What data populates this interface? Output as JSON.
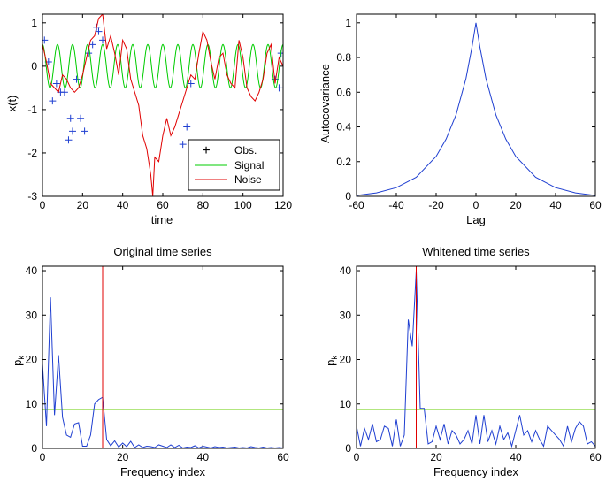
{
  "chart_data": [
    {
      "type": "line",
      "xlabel": "time",
      "ylabel": "x(t)",
      "xlim": [
        0,
        120
      ],
      "ylim": [
        -3,
        1.2
      ],
      "xticks": [
        0,
        20,
        40,
        60,
        80,
        100,
        120
      ],
      "yticks": [
        1,
        0,
        -1,
        -2,
        -3
      ],
      "legend": {
        "placement": "bottom-right",
        "entries": [
          "Obs.",
          "Signal",
          "Noise"
        ]
      },
      "series": [
        {
          "name": "Obs.",
          "marker": "+",
          "color": "#1f3fd1",
          "x": [
            1,
            3,
            5,
            7,
            9,
            11,
            13,
            14,
            15,
            17,
            19,
            21,
            23,
            25,
            27,
            28,
            30,
            70,
            72,
            74,
            116,
            118,
            119
          ],
          "y": [
            0.6,
            0.1,
            -0.8,
            -0.4,
            -0.6,
            -0.6,
            -1.7,
            -1.2,
            -1.5,
            -0.3,
            -1.2,
            -1.5,
            0.3,
            0.5,
            0.9,
            0.8,
            0.6,
            -1.8,
            -1.4,
            -0.4,
            -0.3,
            -0.5,
            0.3
          ]
        },
        {
          "name": "Signal",
          "color": "#00cc00",
          "type": "sine",
          "amplitude": 0.5,
          "period": 7.5,
          "offset": 0,
          "x_range": [
            0,
            120
          ]
        },
        {
          "name": "Noise",
          "color": "#e00000",
          "x": [
            0,
            2,
            4,
            6,
            8,
            10,
            12,
            14,
            16,
            18,
            20,
            22,
            24,
            26,
            28,
            30,
            32,
            34,
            36,
            38,
            40,
            42,
            44,
            46,
            48,
            50,
            52,
            54,
            55,
            56,
            58,
            60,
            62,
            64,
            66,
            68,
            70,
            72,
            74,
            76,
            78,
            80,
            82,
            84,
            86,
            88,
            90,
            92,
            94,
            96,
            98,
            100,
            102,
            104,
            106,
            108,
            110,
            112,
            114,
            116,
            118,
            120
          ],
          "y": [
            0.5,
            0.1,
            -0.4,
            -0.5,
            -0.6,
            -0.2,
            -0.3,
            -0.5,
            -0.6,
            -0.5,
            -0.2,
            0.2,
            0.6,
            0.7,
            1.1,
            1.2,
            0.4,
            0.7,
            0.3,
            -0.2,
            0.6,
            0.4,
            -0.3,
            -0.6,
            -0.9,
            -1.6,
            -1.9,
            -2.5,
            -3.0,
            -2.1,
            -2.2,
            -1.6,
            -1.2,
            -1.6,
            -1.4,
            -1.1,
            -0.8,
            -0.5,
            -0.2,
            -0.3,
            0.3,
            0.8,
            0.6,
            0.1,
            -0.3,
            0.2,
            0.3,
            -0.2,
            -0.4,
            -0.5,
            0.6,
            0.2,
            -0.5,
            -0.7,
            -0.8,
            -0.6,
            -0.3,
            0.3,
            0.5,
            -0.4,
            0.2,
            0.0
          ]
        }
      ]
    },
    {
      "type": "line",
      "xlabel": "Lag",
      "ylabel": "Autocovariance",
      "xlim": [
        -60,
        60
      ],
      "ylim": [
        0,
        1.05
      ],
      "xticks": [
        -60,
        -40,
        -20,
        0,
        20,
        40,
        60
      ],
      "yticks": [
        1,
        0.8,
        0.6,
        0.4,
        0.2,
        0
      ],
      "series": [
        {
          "color": "#1f3fd1",
          "x": [
            -60,
            -50,
            -40,
            -30,
            -20,
            -15,
            -10,
            -5,
            -2,
            0,
            2,
            5,
            10,
            15,
            20,
            30,
            40,
            50,
            60
          ],
          "y": [
            0.005,
            0.02,
            0.05,
            0.11,
            0.23,
            0.33,
            0.47,
            0.68,
            0.86,
            1.0,
            0.86,
            0.68,
            0.47,
            0.33,
            0.23,
            0.11,
            0.05,
            0.02,
            0.005
          ]
        }
      ]
    },
    {
      "type": "line",
      "title": "Original time series",
      "xlabel": "Frequency index",
      "ylabel": "p_k",
      "xlim": [
        0,
        60
      ],
      "ylim": [
        0,
        41
      ],
      "xticks": [
        0,
        20,
        40,
        60
      ],
      "yticks": [
        40,
        30,
        20,
        10,
        0
      ],
      "vline": {
        "x": 15,
        "color": "#e00000"
      },
      "hline": {
        "y": 8.7,
        "color": "#99dd55"
      },
      "series": [
        {
          "color": "#1f3fd1",
          "x": [
            0,
            1,
            2,
            3,
            4,
            5,
            6,
            7,
            8,
            9,
            10,
            11,
            12,
            13,
            14,
            15,
            16,
            17,
            18,
            19,
            20,
            21,
            22,
            23,
            24,
            25,
            26,
            27,
            28,
            29,
            30,
            31,
            32,
            33,
            34,
            35,
            36,
            37,
            38,
            39,
            40,
            41,
            42,
            43,
            44,
            45,
            46,
            47,
            48,
            49,
            50,
            51,
            52,
            53,
            54,
            55,
            56,
            57,
            58,
            59,
            60
          ],
          "y": [
            19,
            5,
            34,
            7.5,
            21,
            7,
            3,
            2.5,
            5.5,
            5.8,
            0.5,
            0.5,
            3,
            10,
            11,
            11.5,
            2,
            0.6,
            1.7,
            0.3,
            1.2,
            0.4,
            1.6,
            0.2,
            0.8,
            0.2,
            0.5,
            0.4,
            0.2,
            0.8,
            0.5,
            0.2,
            0.8,
            0.2,
            0.7,
            0.1,
            0.3,
            0.2,
            0.6,
            0.1,
            0.5,
            0.3,
            0.1,
            0.4,
            0.2,
            0.3,
            0.1,
            0.2,
            0.3,
            0.1,
            0.2,
            0.1,
            0.4,
            0.2,
            0.1,
            0.3,
            0.1,
            0.2,
            0.1,
            0.2,
            0.1
          ]
        }
      ]
    },
    {
      "type": "line",
      "title": "Whitened time series",
      "xlabel": "Frequency index",
      "ylabel": "p_k",
      "xlim": [
        0,
        60
      ],
      "ylim": [
        0,
        41
      ],
      "xticks": [
        0,
        20,
        40,
        60
      ],
      "yticks": [
        40,
        30,
        20,
        10,
        0
      ],
      "vline": {
        "x": 15,
        "color": "#e00000"
      },
      "hline": {
        "y": 8.7,
        "color": "#99dd55"
      },
      "series": [
        {
          "color": "#1f3fd1",
          "x": [
            0,
            1,
            2,
            3,
            4,
            5,
            6,
            7,
            8,
            9,
            10,
            11,
            12,
            13,
            14,
            15,
            16,
            17,
            18,
            19,
            20,
            21,
            22,
            23,
            24,
            25,
            26,
            27,
            28,
            29,
            30,
            31,
            32,
            33,
            34,
            35,
            36,
            37,
            38,
            39,
            40,
            41,
            42,
            43,
            44,
            45,
            46,
            47,
            48,
            49,
            50,
            51,
            52,
            53,
            54,
            55,
            56,
            57,
            58,
            59,
            60
          ],
          "y": [
            5,
            0.5,
            4.5,
            2,
            5.5,
            1.5,
            2,
            5,
            4.5,
            0.5,
            6.5,
            0.5,
            3,
            29,
            23,
            40,
            9,
            9,
            1,
            1.5,
            5,
            2,
            5.5,
            1,
            4,
            3,
            1,
            2,
            4,
            1,
            7.5,
            1,
            7.5,
            1.5,
            4,
            1,
            5,
            2,
            3.5,
            0.5,
            4,
            7.5,
            3,
            4,
            1.5,
            4,
            2,
            0.5,
            5,
            4,
            3,
            2,
            0.5,
            5,
            1.5,
            4.5,
            6,
            5,
            1,
            1.5,
            0.5
          ]
        }
      ]
    }
  ],
  "colors": {
    "blue": "#1f3fd1",
    "green": "#00cc00",
    "red": "#e00000",
    "light_green": "#99dd55"
  }
}
